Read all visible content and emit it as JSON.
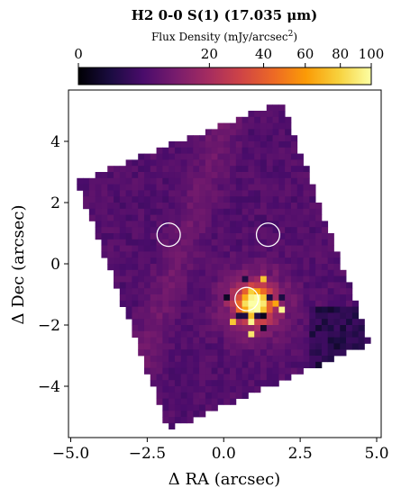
{
  "chart_data": {
    "type": "heatmap",
    "title": "H2 0-0 S(1) (17.035 μm)",
    "colorbar": {
      "label_main": "Flux Density (mJy/arcsec",
      "label_sup": "2",
      "label_close": ")",
      "ticks": [
        "0",
        "20",
        "40",
        "60",
        "80",
        "100"
      ],
      "tick_values": [
        0,
        20,
        40,
        60,
        80,
        100
      ],
      "scale": "sqrt",
      "range": [
        0,
        100
      ],
      "placement": "top",
      "colormap": "inferno",
      "colormap_stops": [
        "#000004",
        "#1b0c41",
        "#4a0c6b",
        "#781c6d",
        "#a52c60",
        "#cf4446",
        "#ed6925",
        "#fb9b06",
        "#f7d13d",
        "#fcffa4"
      ]
    },
    "xlabel": "Δ RA (arcsec)",
    "ylabel": "Δ Dec (arcsec)",
    "xlim": [
      -5.0,
      5.0
    ],
    "ylim": [
      -5.6,
      5.6
    ],
    "xticks": [
      "−5.0",
      "−2.5",
      "0.0",
      "2.5",
      "5.0"
    ],
    "xtick_values": [
      -5.0,
      -2.5,
      0.0,
      2.5,
      5.0
    ],
    "yticks": [
      "4",
      "2",
      "0",
      "−2",
      "−4"
    ],
    "ytick_values": [
      4,
      2,
      0,
      -2,
      -4
    ],
    "grid": false,
    "map": {
      "cell_size_arcsec": 0.2,
      "footprint_corners": [
        [
          -4.8,
          2.7
        ],
        [
          -1.8,
          -5.4
        ],
        [
          4.8,
          -2.6
        ],
        [
          1.9,
          5.3
        ]
      ],
      "background_flux": 6,
      "filament_flux": 9,
      "peak_position": [
        1.0,
        -1.3
      ],
      "peak_flux": 100,
      "faint_outskirts_flux": 2
    },
    "apertures": [
      {
        "x": -1.8,
        "y": 0.95,
        "radius": 0.38
      },
      {
        "x": 1.45,
        "y": 0.95,
        "radius": 0.38
      },
      {
        "x": 0.75,
        "y": -1.15,
        "radius": 0.38
      }
    ],
    "colors": {
      "aperture": "#ffffff",
      "axes": "#000000",
      "background": "#ffffff"
    }
  }
}
